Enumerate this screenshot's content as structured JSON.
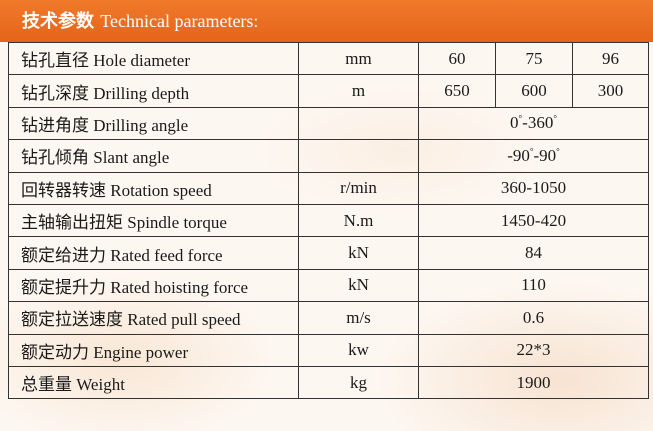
{
  "header": {
    "title_cn": "技术参数",
    "title_en": "Technical parameters:"
  },
  "rows": [
    {
      "name": "钻孔直径 Hole diameter",
      "unit": "mm",
      "values": [
        "60",
        "75",
        "96"
      ]
    },
    {
      "name": "钻孔深度 Drilling depth",
      "unit": "m",
      "values": [
        "650",
        "600",
        "300"
      ]
    },
    {
      "name": "钻进角度 Drilling angle",
      "unit": "",
      "value_parts": [
        "0",
        "°",
        "-360",
        "°"
      ]
    },
    {
      "name": "钻孔倾角 Slant angle",
      "unit": "",
      "value_parts": [
        "-90",
        "°",
        "-90",
        "°"
      ]
    },
    {
      "name": "回转器转速 Rotation speed",
      "unit": "r/min",
      "value": "360-1050"
    },
    {
      "name": "主轴输出扭矩 Spindle torque",
      "unit": "N.m",
      "value": "1450-420"
    },
    {
      "name": "额定给进力 Rated feed force",
      "unit": "kN",
      "value": "84"
    },
    {
      "name": "额定提升力 Rated hoisting force",
      "unit": "kN",
      "value": "110"
    },
    {
      "name": "额定拉送速度 Rated pull speed",
      "unit": "m/s",
      "value": "0.6"
    },
    {
      "name": "额定动力 Engine power",
      "unit": "kw",
      "value": "22*3"
    },
    {
      "name": "总重量 Weight",
      "unit": "kg",
      "value": "1900"
    }
  ]
}
